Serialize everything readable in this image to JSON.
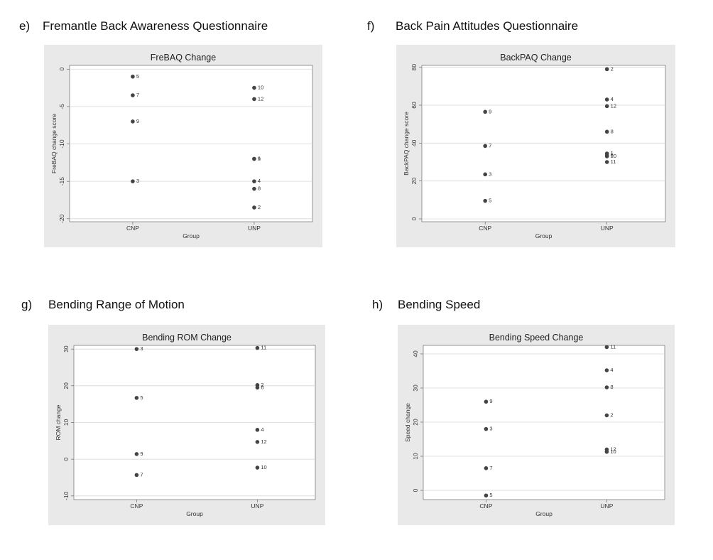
{
  "chart_data": [
    {
      "type": "scatter",
      "panel": "e)",
      "heading": "Fremantle Back Awareness Questionnaire",
      "title": "FreBAQ Change",
      "xlabel": "Group",
      "ylabel": "FreBAQ change score",
      "categories": [
        "CNP",
        "UNP"
      ],
      "values": [
        [
          -1,
          -3.5,
          -7,
          -15
        ],
        [
          -2.5,
          -4,
          -12,
          -12,
          -15,
          -16,
          -18.5
        ]
      ],
      "point_labels": [
        [
          "5",
          "7",
          "9",
          "3"
        ],
        [
          "10",
          "12",
          "6",
          "1",
          "4",
          "8",
          "2"
        ]
      ],
      "ylim": [
        -20.4,
        0.5
      ],
      "yticks": [
        0,
        -5,
        -10,
        -15,
        -20
      ],
      "color": "#444444",
      "grid": true
    },
    {
      "type": "scatter",
      "panel": "f)",
      "heading": "Back Pain Attitudes Questionnaire",
      "title": "BackPAQ Change",
      "xlabel": "Group",
      "ylabel": "BackPAQ change score",
      "categories": [
        "CNP",
        "UNP"
      ],
      "values": [
        [
          56.5,
          38.5,
          23.5,
          9.5
        ],
        [
          79,
          63,
          59.5,
          46,
          34.5,
          33.5,
          33,
          30
        ]
      ],
      "point_labels": [
        [
          "9",
          "7",
          "3",
          "5"
        ],
        [
          "2",
          "4",
          "12",
          "8",
          "1",
          "6",
          "10",
          "11"
        ]
      ],
      "ylim": [
        -1.5,
        81
      ],
      "yticks": [
        0,
        20,
        40,
        60,
        80
      ],
      "color": "#444444",
      "grid": true
    },
    {
      "type": "scatter",
      "panel": "g)",
      "heading": "Bending Range of Motion",
      "title": "Bending ROM Change",
      "xlabel": "Group",
      "ylabel": "ROM change",
      "categories": [
        "CNP",
        "UNP"
      ],
      "values": [
        [
          30,
          16.7,
          1.4,
          -4.3
        ],
        [
          30.3,
          20.2,
          19.5,
          8,
          4.7,
          -2.3
        ]
      ],
      "point_labels": [
        [
          "3",
          "5",
          "9",
          "7"
        ],
        [
          "11",
          "2",
          "6",
          "4",
          "12",
          "10"
        ]
      ],
      "ylim": [
        -11,
        31
      ],
      "yticks": [
        30,
        20,
        10,
        0,
        -10
      ],
      "color": "#444444",
      "grid": true
    },
    {
      "type": "scatter",
      "panel": "h)",
      "heading": "Bending Speed",
      "title": "Bending Speed Change",
      "xlabel": "Group",
      "ylabel": "Speed change",
      "categories": [
        "CNP",
        "UNP"
      ],
      "values": [
        [
          26,
          18,
          6.5,
          -1.5
        ],
        [
          42,
          35.2,
          30.2,
          22,
          12,
          11.3
        ]
      ],
      "point_labels": [
        [
          "9",
          "3",
          "7",
          "5"
        ],
        [
          "11",
          "4",
          "8",
          "2",
          "12",
          "10"
        ]
      ],
      "ylim": [
        -2.7,
        42.5
      ],
      "yticks": [
        40,
        30,
        20,
        10,
        0
      ],
      "color": "#444444",
      "grid": true
    }
  ]
}
